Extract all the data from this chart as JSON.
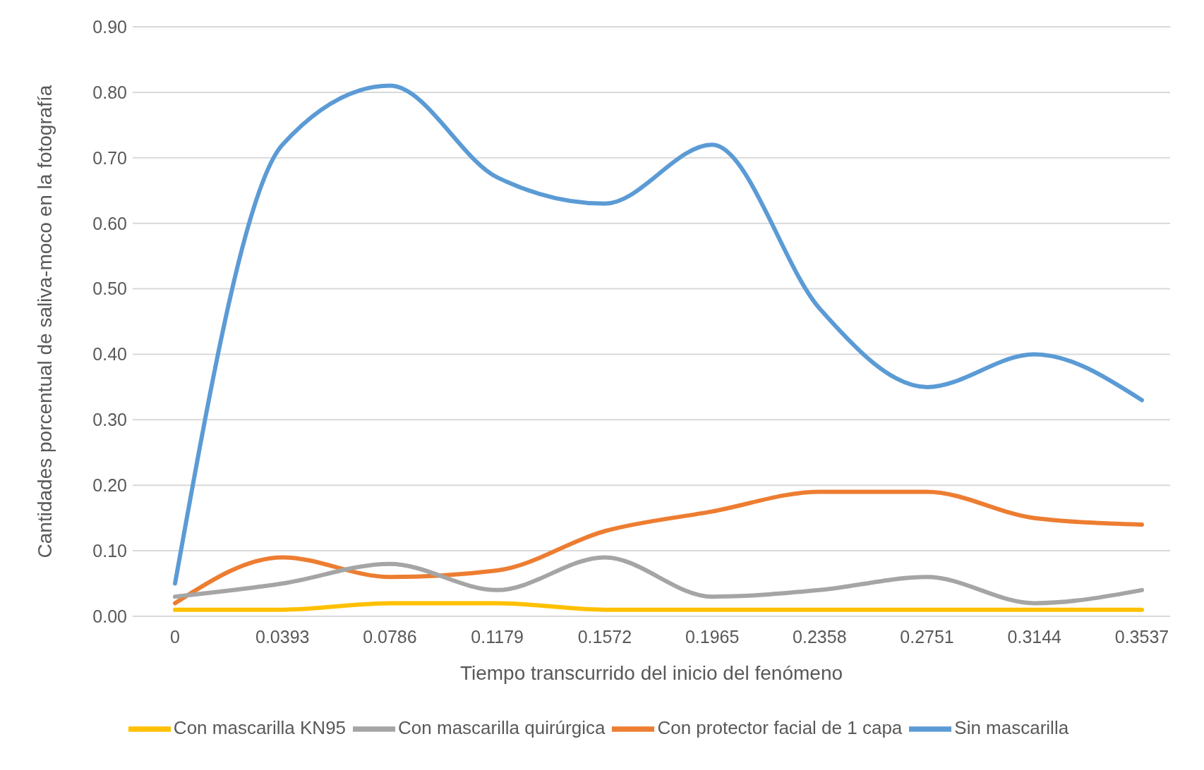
{
  "chart_data": {
    "type": "line",
    "xlabel": "Tiempo transcurrido del inicio del fenómeno",
    "ylabel": "Cantidades porcentual de saliva-moco en la fotografía",
    "categories": [
      "0",
      "0.0393",
      "0.0786",
      "0.1179",
      "0.1572",
      "0.1965",
      "0.2358",
      "0.2751",
      "0.3144",
      "0.3537"
    ],
    "series": [
      {
        "name": "Sin mascarilla",
        "color": "#5b9bd5",
        "values": [
          0.05,
          0.72,
          0.81,
          0.67,
          0.63,
          0.72,
          0.47,
          0.35,
          0.4,
          0.33
        ]
      },
      {
        "name": "Con protector facial de 1 capa",
        "color": "#ed7d31",
        "values": [
          0.02,
          0.09,
          0.06,
          0.07,
          0.13,
          0.16,
          0.19,
          0.19,
          0.15,
          0.14
        ]
      },
      {
        "name": "Con mascarilla quirúrgica",
        "color": "#a5a5a5",
        "values": [
          0.03,
          0.05,
          0.08,
          0.04,
          0.09,
          0.03,
          0.04,
          0.06,
          0.02,
          0.04
        ]
      },
      {
        "name": "Con mascarilla KN95",
        "color": "#ffc000",
        "values": [
          0.01,
          0.01,
          0.02,
          0.02,
          0.01,
          0.01,
          0.01,
          0.01,
          0.01,
          0.01
        ]
      }
    ],
    "ylim": [
      0,
      0.9
    ],
    "yticks": [
      {
        "value": 0,
        "label": "0.00"
      },
      {
        "value": 0.1,
        "label": "0.10"
      },
      {
        "value": 0.2,
        "label": "0.20"
      },
      {
        "value": 0.3,
        "label": "0.30"
      },
      {
        "value": 0.4,
        "label": "0.40"
      },
      {
        "value": 0.5,
        "label": "0.50"
      },
      {
        "value": 0.6,
        "label": "0.60"
      },
      {
        "value": 0.7,
        "label": "0.70"
      },
      {
        "value": 0.8,
        "label": "0.80"
      },
      {
        "value": 0.9,
        "label": "0.90"
      }
    ],
    "grid": "y",
    "legend": "bottom",
    "marker": "none",
    "line_style": "solid"
  }
}
